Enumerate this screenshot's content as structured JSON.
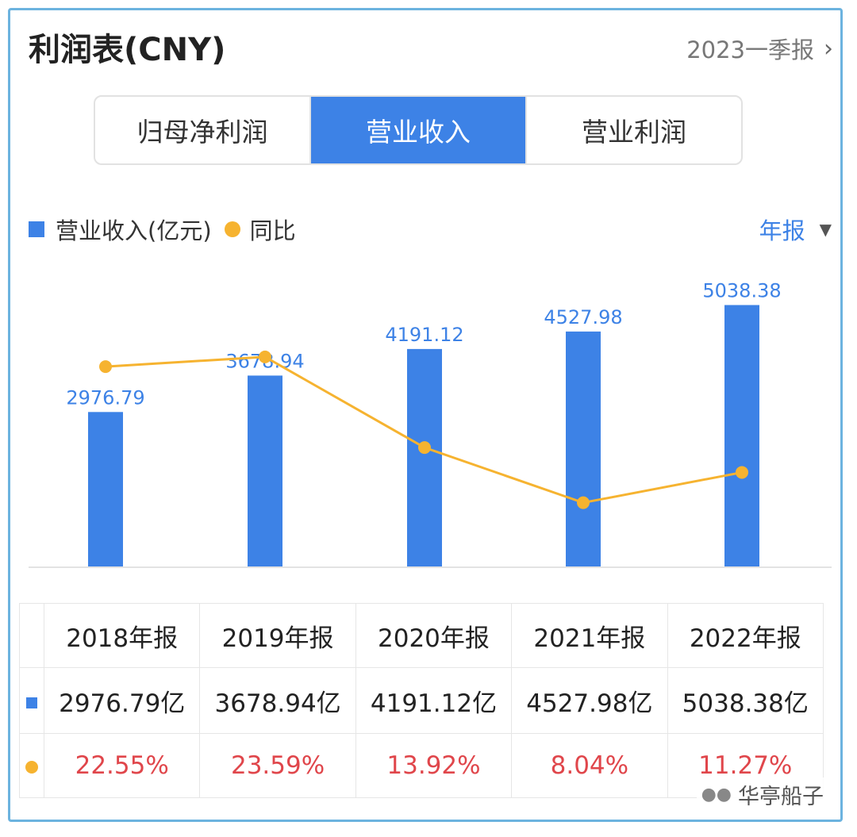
{
  "header": {
    "title": "利润表(CNY)",
    "period_label": "2023一季报",
    "chevron_icon": "chevron-right-icon"
  },
  "tabs": [
    {
      "label": "归母净利润",
      "active": false
    },
    {
      "label": "营业收入",
      "active": true
    },
    {
      "label": "营业利润",
      "active": false
    }
  ],
  "legend": {
    "bar_label": "营业收入(亿元)",
    "line_label": "同比"
  },
  "frequency": {
    "label": "年报",
    "dropdown_icon": "triangle-down-icon"
  },
  "colors": {
    "bar": "#3d82e6",
    "line": "#f6b330",
    "pct_text": "#e0464b"
  },
  "chart_data": {
    "type": "bar",
    "categories": [
      "2018年报",
      "2019年报",
      "2020年报",
      "2021年报",
      "2022年报"
    ],
    "series": [
      {
        "name": "营业收入(亿元)",
        "type": "bar",
        "values": [
          2976.79,
          3678.94,
          4191.12,
          4527.98,
          5038.38
        ]
      },
      {
        "name": "同比",
        "type": "line",
        "values": [
          22.55,
          23.59,
          13.92,
          8.04,
          11.27
        ]
      }
    ],
    "bar_labels": [
      "2976.79",
      "3678.94",
      "4191.12",
      "4527.98",
      "5038.38"
    ]
  },
  "table": {
    "headers": [
      "2018年报",
      "2019年报",
      "2020年报",
      "2021年报",
      "2022年报"
    ],
    "revenue_row": [
      "2976.79亿",
      "3678.94亿",
      "4191.12亿",
      "4527.98亿",
      "5038.38亿"
    ],
    "yoy_row": [
      "22.55%",
      "23.59%",
      "13.92%",
      "8.04%",
      "11.27%"
    ]
  },
  "watermark": {
    "icon": "wechat-icon",
    "text": "华亭船子"
  }
}
